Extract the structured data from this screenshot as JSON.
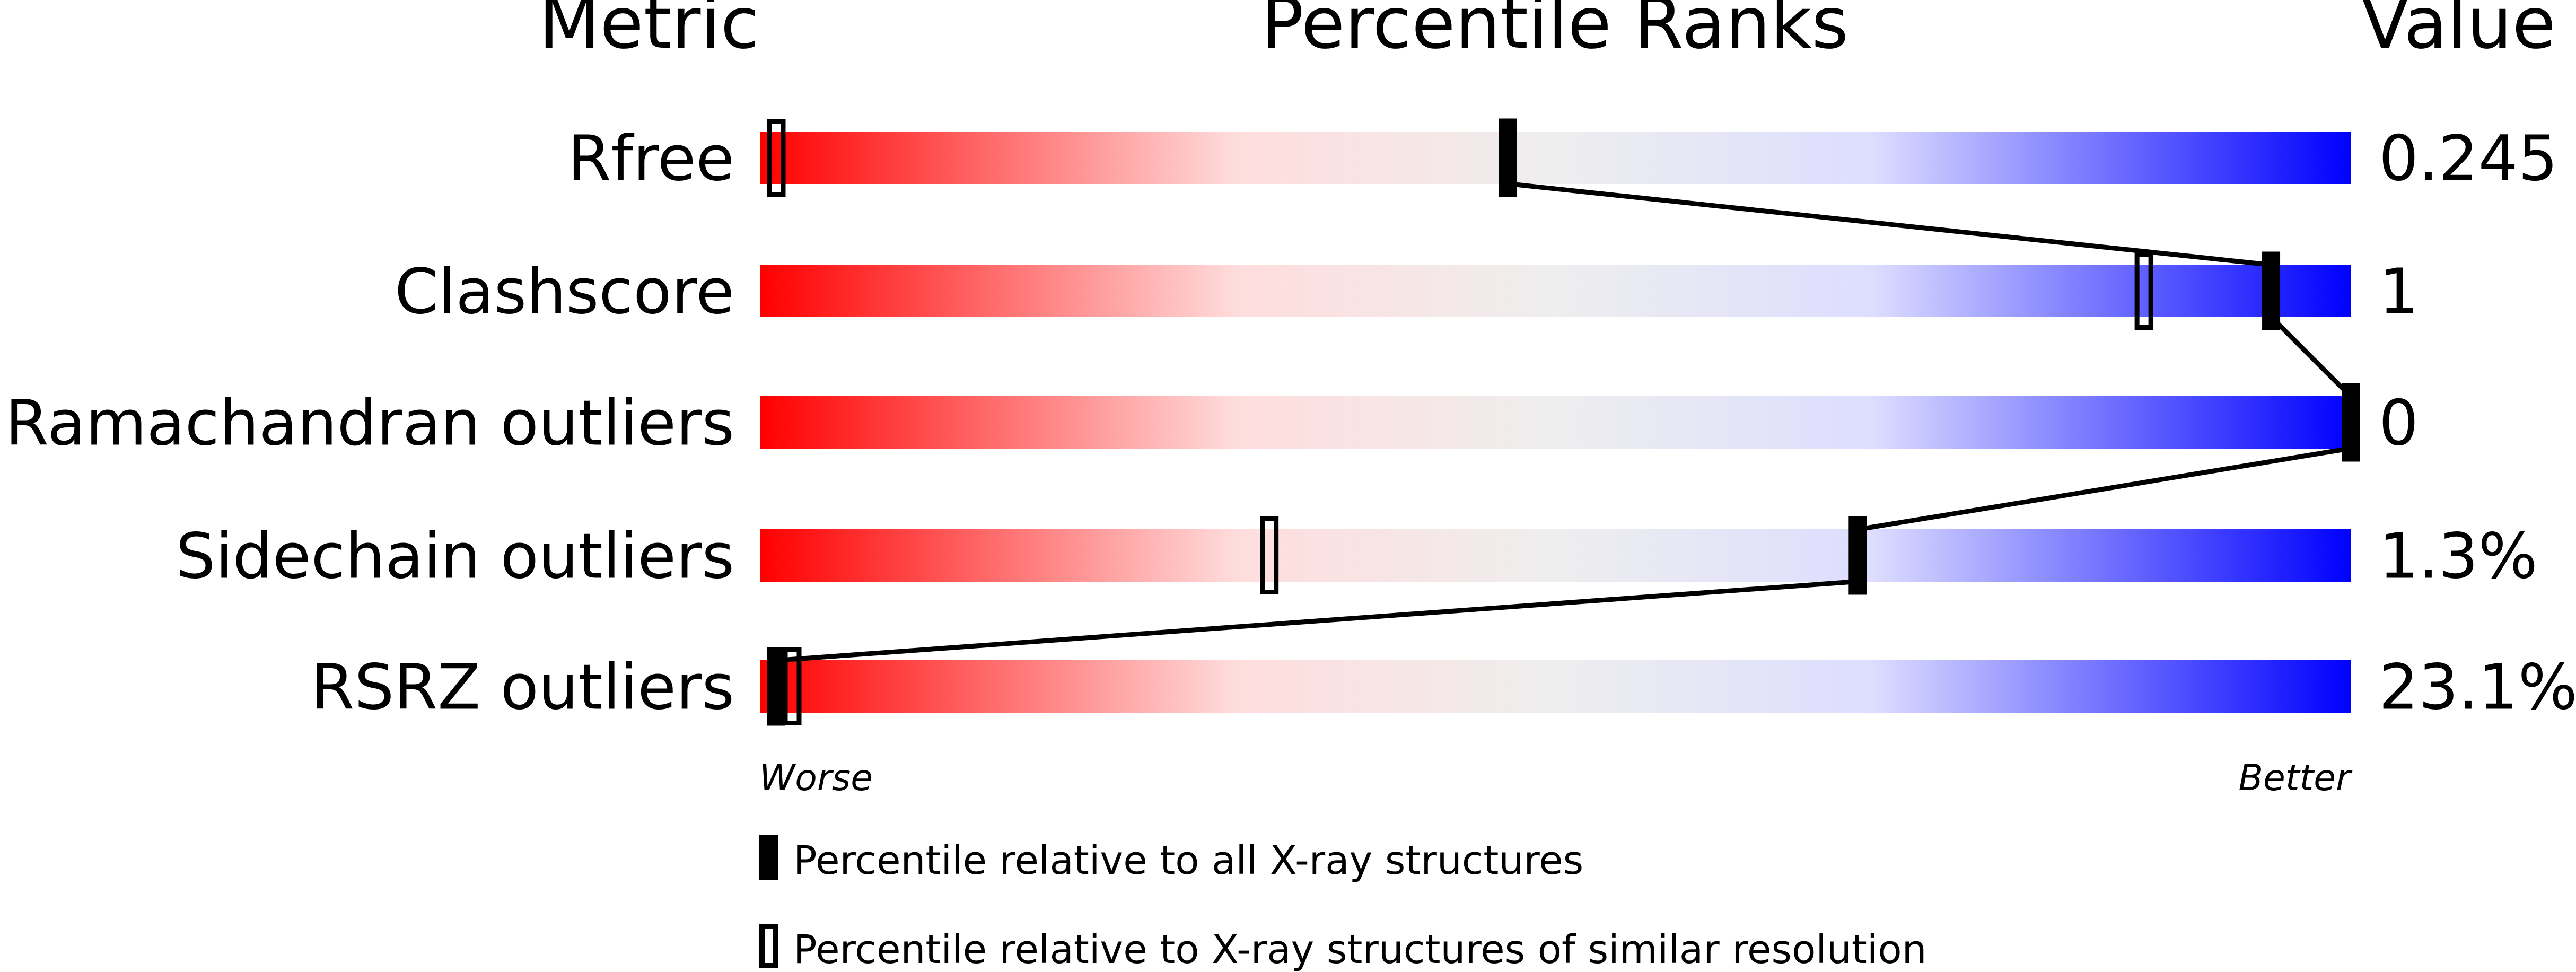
{
  "chart_data": {
    "type": "percentile-slider",
    "headers": {
      "metric": "Metric",
      "percentile": "Percentile Ranks",
      "value": "Value"
    },
    "xlim": [
      0,
      100
    ],
    "scale_labels": {
      "left": "Worse",
      "right": "Better"
    },
    "gradient_colors": [
      "#ff0000",
      "#ffdddd",
      "#eeeeee",
      "#ddddff",
      "#0000ff"
    ],
    "rows": [
      {
        "metric": "Rfree",
        "value": "0.245",
        "percentile_all": 47,
        "percentile_similar": 1
      },
      {
        "metric": "Clashscore",
        "value": "1",
        "percentile_all": 95,
        "percentile_similar": 87
      },
      {
        "metric": "Ramachandran outliers",
        "value": "0",
        "percentile_all": 100,
        "percentile_similar": null
      },
      {
        "metric": "Sidechain outliers",
        "value": "1.3%",
        "percentile_all": 69,
        "percentile_similar": 32
      },
      {
        "metric": "RSRZ outliers",
        "value": "23.1%",
        "percentile_all": 1,
        "percentile_similar": 2
      }
    ],
    "legend": [
      {
        "marker": "filled",
        "label": "Percentile relative to all X-ray structures"
      },
      {
        "marker": "outline",
        "label": "Percentile relative to X-ray structures of similar resolution"
      }
    ]
  }
}
